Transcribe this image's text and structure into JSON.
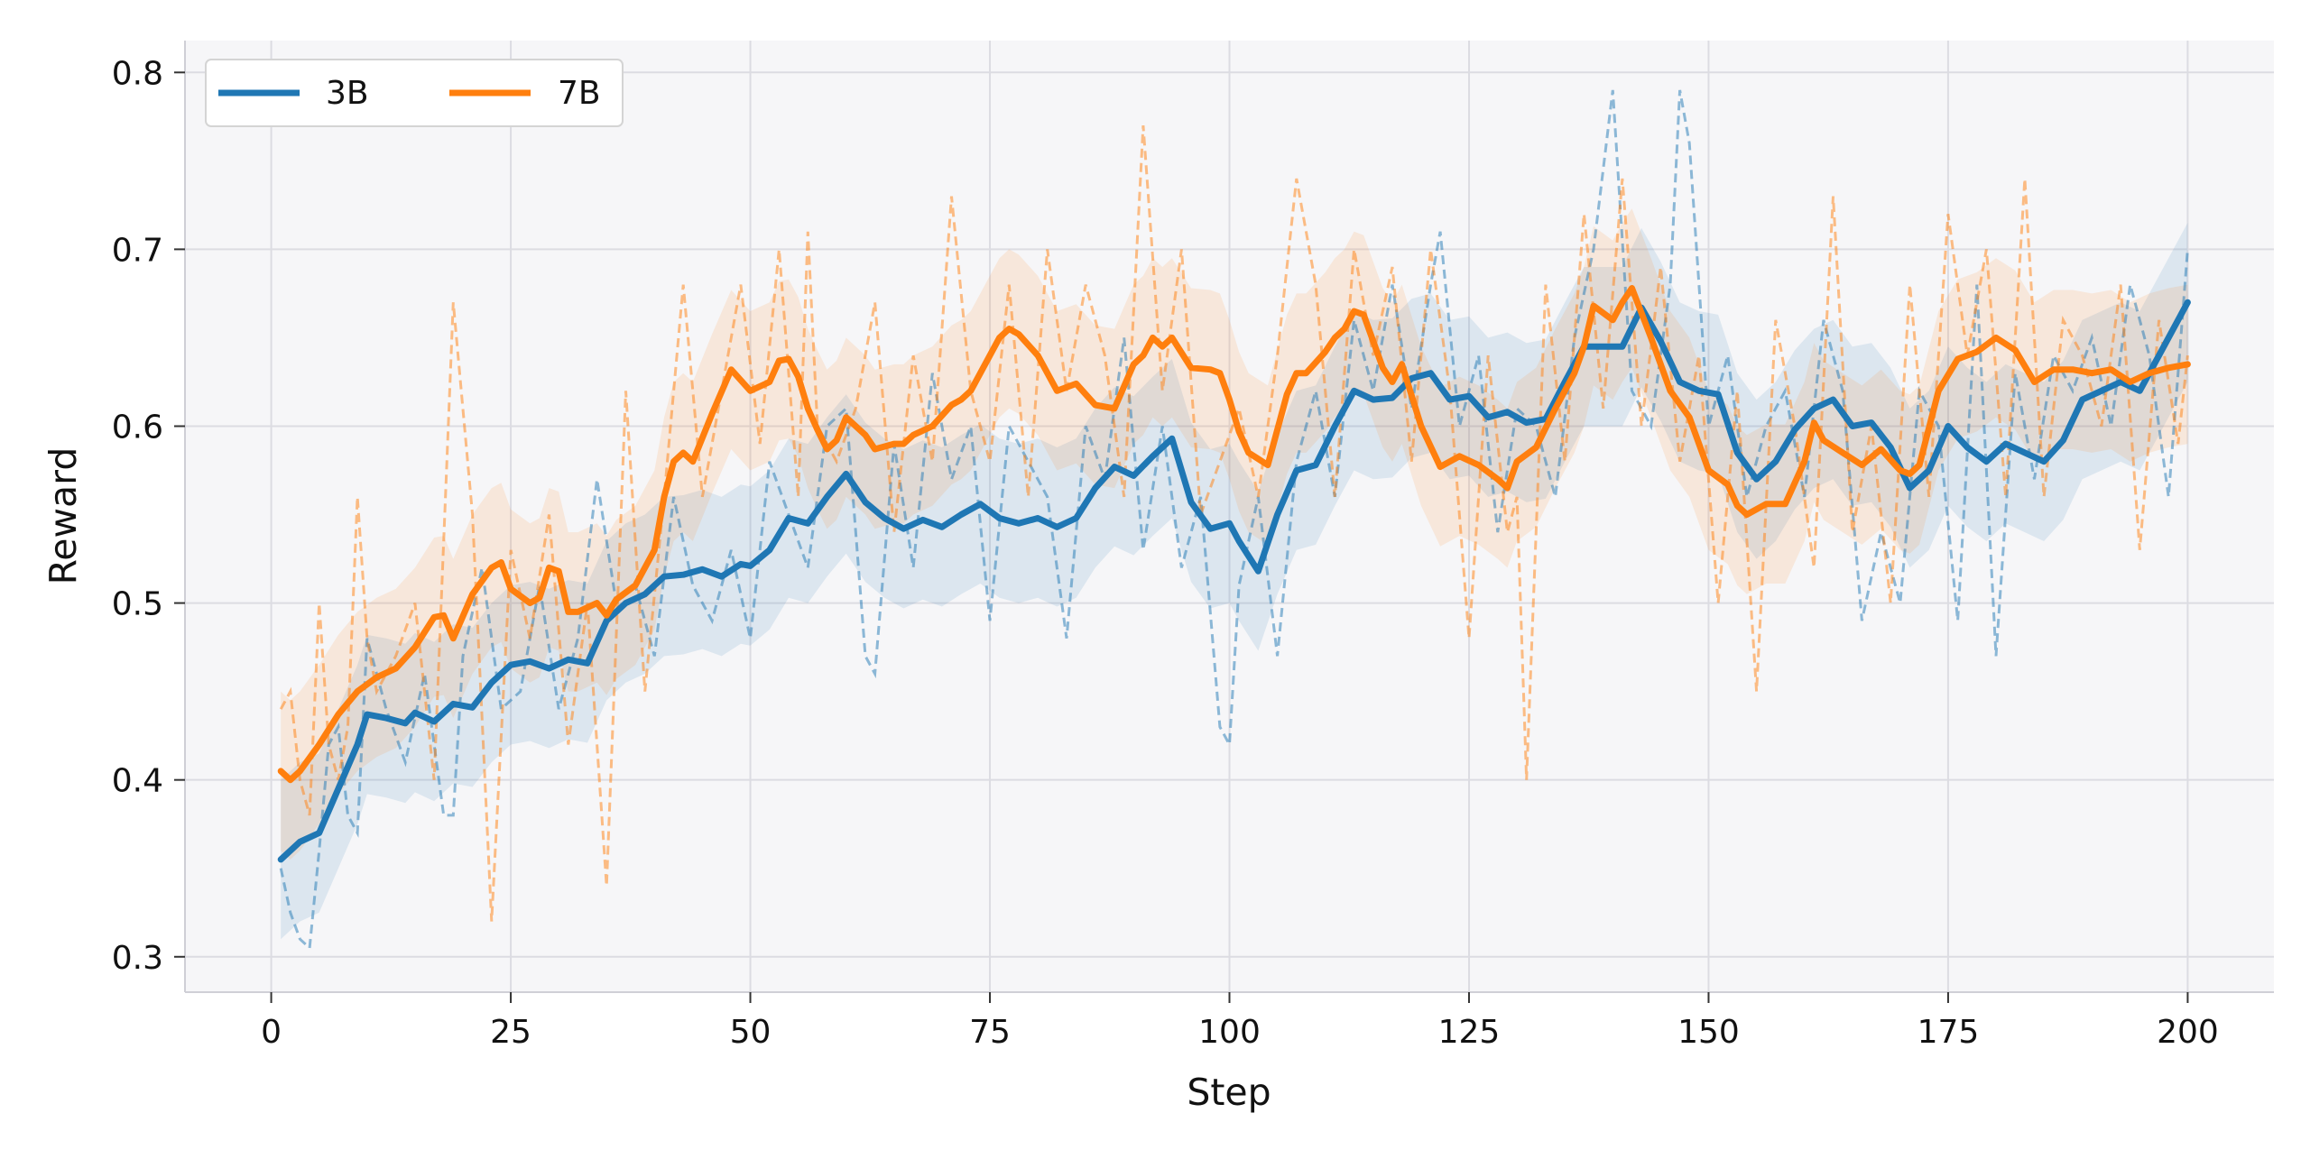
{
  "chart_data": {
    "type": "line",
    "title": "",
    "xlabel": "Step",
    "ylabel": "Reward",
    "xlim": [
      -9,
      209
    ],
    "ylim": [
      0.28,
      0.818
    ],
    "xticks": [
      0,
      25,
      50,
      75,
      100,
      125,
      150,
      175,
      200
    ],
    "xtick_labels": [
      "0",
      "25",
      "50",
      "75",
      "100",
      "125",
      "150",
      "175",
      "200"
    ],
    "yticks": [
      0.3,
      0.4,
      0.5,
      0.6,
      0.7,
      0.8
    ],
    "ytick_labels": [
      "0.3",
      "0.4",
      "0.5",
      "0.6",
      "0.7",
      "0.8"
    ],
    "grid": true,
    "legend": {
      "location": "top-left",
      "ncol": 2
    },
    "band_halfwidth": 0.045,
    "series": [
      {
        "name": "3B",
        "color": "#1f77b4",
        "smoothed": {
          "x": [
            1,
            3,
            5,
            7,
            9,
            10,
            12,
            14,
            15,
            17,
            19,
            21,
            23,
            25,
            27,
            29,
            31,
            33,
            35,
            37,
            39,
            41,
            43,
            45,
            47,
            49,
            50,
            52,
            54,
            56,
            58,
            60,
            62,
            64,
            66,
            68,
            70,
            72,
            74,
            76,
            78,
            80,
            82,
            84,
            86,
            88,
            90,
            92,
            94,
            96,
            98,
            100,
            101,
            103,
            105,
            107,
            109,
            111,
            113,
            115,
            117,
            119,
            121,
            123,
            125,
            127,
            129,
            131,
            133,
            135,
            137,
            139,
            141,
            143,
            145,
            147,
            149,
            151,
            153,
            155,
            157,
            159,
            161,
            163,
            165,
            167,
            169,
            171,
            173,
            175,
            177,
            179,
            181,
            183,
            185,
            187,
            189,
            191,
            193,
            195,
            197,
            199,
            200
          ],
          "y": [
            0.355,
            0.365,
            0.37,
            0.395,
            0.42,
            0.437,
            0.435,
            0.432,
            0.438,
            0.433,
            0.443,
            0.441,
            0.455,
            0.465,
            0.467,
            0.463,
            0.468,
            0.466,
            0.49,
            0.5,
            0.505,
            0.515,
            0.516,
            0.519,
            0.515,
            0.522,
            0.521,
            0.53,
            0.548,
            0.545,
            0.56,
            0.573,
            0.557,
            0.548,
            0.542,
            0.547,
            0.543,
            0.55,
            0.556,
            0.548,
            0.545,
            0.548,
            0.543,
            0.548,
            0.565,
            0.577,
            0.572,
            0.583,
            0.593,
            0.557,
            0.542,
            0.545,
            0.535,
            0.518,
            0.55,
            0.575,
            0.578,
            0.6,
            0.62,
            0.615,
            0.616,
            0.627,
            0.63,
            0.615,
            0.617,
            0.605,
            0.608,
            0.602,
            0.604,
            0.625,
            0.645,
            0.645,
            0.645,
            0.667,
            0.648,
            0.625,
            0.62,
            0.618,
            0.585,
            0.57,
            0.58,
            0.598,
            0.61,
            0.615,
            0.6,
            0.602,
            0.588,
            0.565,
            0.575,
            0.6,
            0.588,
            0.58,
            0.59,
            0.585,
            0.58,
            0.592,
            0.615,
            0.62,
            0.625,
            0.62,
            0.64,
            0.66,
            0.67
          ]
        },
        "raw": {
          "x": [
            1,
            2,
            3,
            4,
            5,
            6,
            7,
            8,
            9,
            10,
            12,
            14,
            16,
            18,
            19,
            20,
            22,
            24,
            26,
            28,
            30,
            32,
            34,
            36,
            38,
            40,
            42,
            44,
            46,
            48,
            50,
            52,
            54,
            56,
            58,
            60,
            62,
            63,
            65,
            67,
            69,
            71,
            73,
            75,
            77,
            79,
            81,
            83,
            85,
            87,
            89,
            91,
            93,
            95,
            97,
            99,
            100,
            101,
            103,
            105,
            107,
            109,
            111,
            113,
            115,
            117,
            119,
            121,
            122,
            124,
            126,
            128,
            130,
            132,
            134,
            136,
            138,
            140,
            142,
            144,
            146,
            147,
            148,
            150,
            152,
            154,
            156,
            158,
            160,
            162,
            164,
            166,
            168,
            170,
            172,
            174,
            176,
            178,
            180,
            182,
            184,
            186,
            188,
            190,
            192,
            194,
            196,
            198,
            200
          ],
          "y": [
            0.35,
            0.325,
            0.31,
            0.305,
            0.36,
            0.42,
            0.43,
            0.38,
            0.37,
            0.48,
            0.44,
            0.41,
            0.46,
            0.38,
            0.38,
            0.47,
            0.52,
            0.44,
            0.45,
            0.51,
            0.44,
            0.48,
            0.57,
            0.5,
            0.51,
            0.47,
            0.56,
            0.51,
            0.49,
            0.53,
            0.48,
            0.58,
            0.55,
            0.52,
            0.6,
            0.61,
            0.47,
            0.46,
            0.59,
            0.52,
            0.63,
            0.57,
            0.6,
            0.49,
            0.6,
            0.58,
            0.56,
            0.48,
            0.6,
            0.57,
            0.65,
            0.53,
            0.6,
            0.52,
            0.56,
            0.43,
            0.42,
            0.51,
            0.56,
            0.47,
            0.58,
            0.62,
            0.56,
            0.66,
            0.62,
            0.68,
            0.61,
            0.68,
            0.71,
            0.6,
            0.64,
            0.54,
            0.61,
            0.6,
            0.56,
            0.65,
            0.7,
            0.79,
            0.62,
            0.6,
            0.68,
            0.79,
            0.76,
            0.6,
            0.64,
            0.56,
            0.6,
            0.62,
            0.56,
            0.66,
            0.62,
            0.49,
            0.54,
            0.5,
            0.62,
            0.6,
            0.49,
            0.68,
            0.47,
            0.63,
            0.57,
            0.64,
            0.62,
            0.65,
            0.6,
            0.68,
            0.64,
            0.56,
            0.7
          ]
        }
      },
      {
        "name": "7B",
        "color": "#ff7f0e",
        "smoothed": {
          "x": [
            1,
            2,
            3,
            5,
            7,
            9,
            11,
            13,
            15,
            17,
            18,
            19,
            21,
            23,
            24,
            25,
            27,
            28,
            29,
            30,
            31,
            32,
            34,
            35,
            36,
            38,
            40,
            41,
            42,
            43,
            44,
            46,
            48,
            50,
            52,
            53,
            54,
            55,
            56,
            57,
            58,
            59,
            60,
            62,
            63,
            65,
            66,
            67,
            69,
            71,
            72,
            73,
            75,
            76,
            77,
            78,
            80,
            82,
            84,
            86,
            88,
            90,
            91,
            92,
            93,
            94,
            96,
            98,
            99,
            100,
            101,
            102,
            104,
            106,
            107,
            108,
            110,
            111,
            112,
            113,
            114,
            116,
            117,
            118,
            120,
            122,
            124,
            126,
            128,
            129,
            130,
            132,
            134,
            136,
            137,
            138,
            140,
            141,
            142,
            144,
            146,
            148,
            150,
            152,
            153,
            154,
            156,
            158,
            160,
            161,
            162,
            164,
            166,
            168,
            170,
            171,
            172,
            174,
            176,
            178,
            180,
            182,
            184,
            186,
            188,
            190,
            192,
            194,
            196,
            198,
            200
          ],
          "y": [
            0.405,
            0.4,
            0.405,
            0.42,
            0.437,
            0.45,
            0.458,
            0.463,
            0.475,
            0.492,
            0.493,
            0.48,
            0.505,
            0.52,
            0.523,
            0.508,
            0.5,
            0.503,
            0.52,
            0.518,
            0.495,
            0.495,
            0.5,
            0.493,
            0.502,
            0.51,
            0.53,
            0.56,
            0.58,
            0.585,
            0.58,
            0.607,
            0.632,
            0.62,
            0.625,
            0.637,
            0.638,
            0.628,
            0.61,
            0.598,
            0.587,
            0.592,
            0.605,
            0.595,
            0.587,
            0.59,
            0.59,
            0.595,
            0.6,
            0.612,
            0.615,
            0.62,
            0.64,
            0.65,
            0.655,
            0.652,
            0.64,
            0.62,
            0.624,
            0.612,
            0.61,
            0.635,
            0.64,
            0.65,
            0.645,
            0.65,
            0.633,
            0.632,
            0.63,
            0.615,
            0.597,
            0.585,
            0.578,
            0.618,
            0.63,
            0.63,
            0.642,
            0.65,
            0.655,
            0.665,
            0.663,
            0.633,
            0.625,
            0.635,
            0.6,
            0.577,
            0.583,
            0.578,
            0.57,
            0.565,
            0.58,
            0.588,
            0.61,
            0.63,
            0.645,
            0.668,
            0.66,
            0.67,
            0.678,
            0.65,
            0.62,
            0.605,
            0.575,
            0.567,
            0.555,
            0.55,
            0.556,
            0.556,
            0.58,
            0.602,
            0.592,
            0.585,
            0.578,
            0.587,
            0.575,
            0.573,
            0.578,
            0.62,
            0.638,
            0.642,
            0.65,
            0.643,
            0.625,
            0.632,
            0.632,
            0.63,
            0.632,
            0.625,
            0.63,
            0.633,
            0.635
          ]
        },
        "raw": {
          "x": [
            1,
            2,
            3,
            4,
            5,
            6,
            7,
            8,
            9,
            10,
            11,
            13,
            15,
            17,
            19,
            21,
            23,
            25,
            27,
            29,
            31,
            33,
            35,
            37,
            39,
            41,
            43,
            45,
            47,
            49,
            51,
            53,
            55,
            56,
            57,
            59,
            61,
            63,
            65,
            67,
            69,
            71,
            73,
            75,
            77,
            79,
            81,
            83,
            85,
            87,
            89,
            91,
            93,
            95,
            97,
            99,
            101,
            103,
            105,
            107,
            109,
            111,
            113,
            115,
            117,
            119,
            121,
            123,
            125,
            127,
            129,
            130,
            131,
            133,
            135,
            137,
            139,
            141,
            143,
            145,
            147,
            149,
            151,
            153,
            155,
            157,
            159,
            161,
            163,
            165,
            167,
            169,
            171,
            173,
            175,
            177,
            179,
            181,
            183,
            185,
            187,
            189,
            191,
            193,
            195,
            197,
            199,
            200
          ],
          "y": [
            0.44,
            0.45,
            0.4,
            0.38,
            0.5,
            0.42,
            0.4,
            0.43,
            0.56,
            0.48,
            0.45,
            0.47,
            0.5,
            0.4,
            0.67,
            0.55,
            0.32,
            0.53,
            0.48,
            0.55,
            0.42,
            0.5,
            0.34,
            0.62,
            0.45,
            0.56,
            0.68,
            0.56,
            0.62,
            0.68,
            0.59,
            0.7,
            0.56,
            0.71,
            0.6,
            0.58,
            0.61,
            0.67,
            0.54,
            0.64,
            0.58,
            0.73,
            0.62,
            0.58,
            0.68,
            0.56,
            0.7,
            0.62,
            0.68,
            0.64,
            0.56,
            0.77,
            0.62,
            0.7,
            0.55,
            0.58,
            0.61,
            0.56,
            0.64,
            0.74,
            0.68,
            0.56,
            0.7,
            0.64,
            0.69,
            0.58,
            0.7,
            0.62,
            0.48,
            0.64,
            0.54,
            0.56,
            0.4,
            0.68,
            0.58,
            0.72,
            0.61,
            0.74,
            0.6,
            0.69,
            0.58,
            0.64,
            0.5,
            0.62,
            0.45,
            0.66,
            0.6,
            0.52,
            0.73,
            0.54,
            0.6,
            0.5,
            0.68,
            0.56,
            0.72,
            0.64,
            0.7,
            0.56,
            0.74,
            0.56,
            0.66,
            0.64,
            0.6,
            0.68,
            0.53,
            0.66,
            0.59,
            0.64
          ]
        }
      }
    ]
  }
}
